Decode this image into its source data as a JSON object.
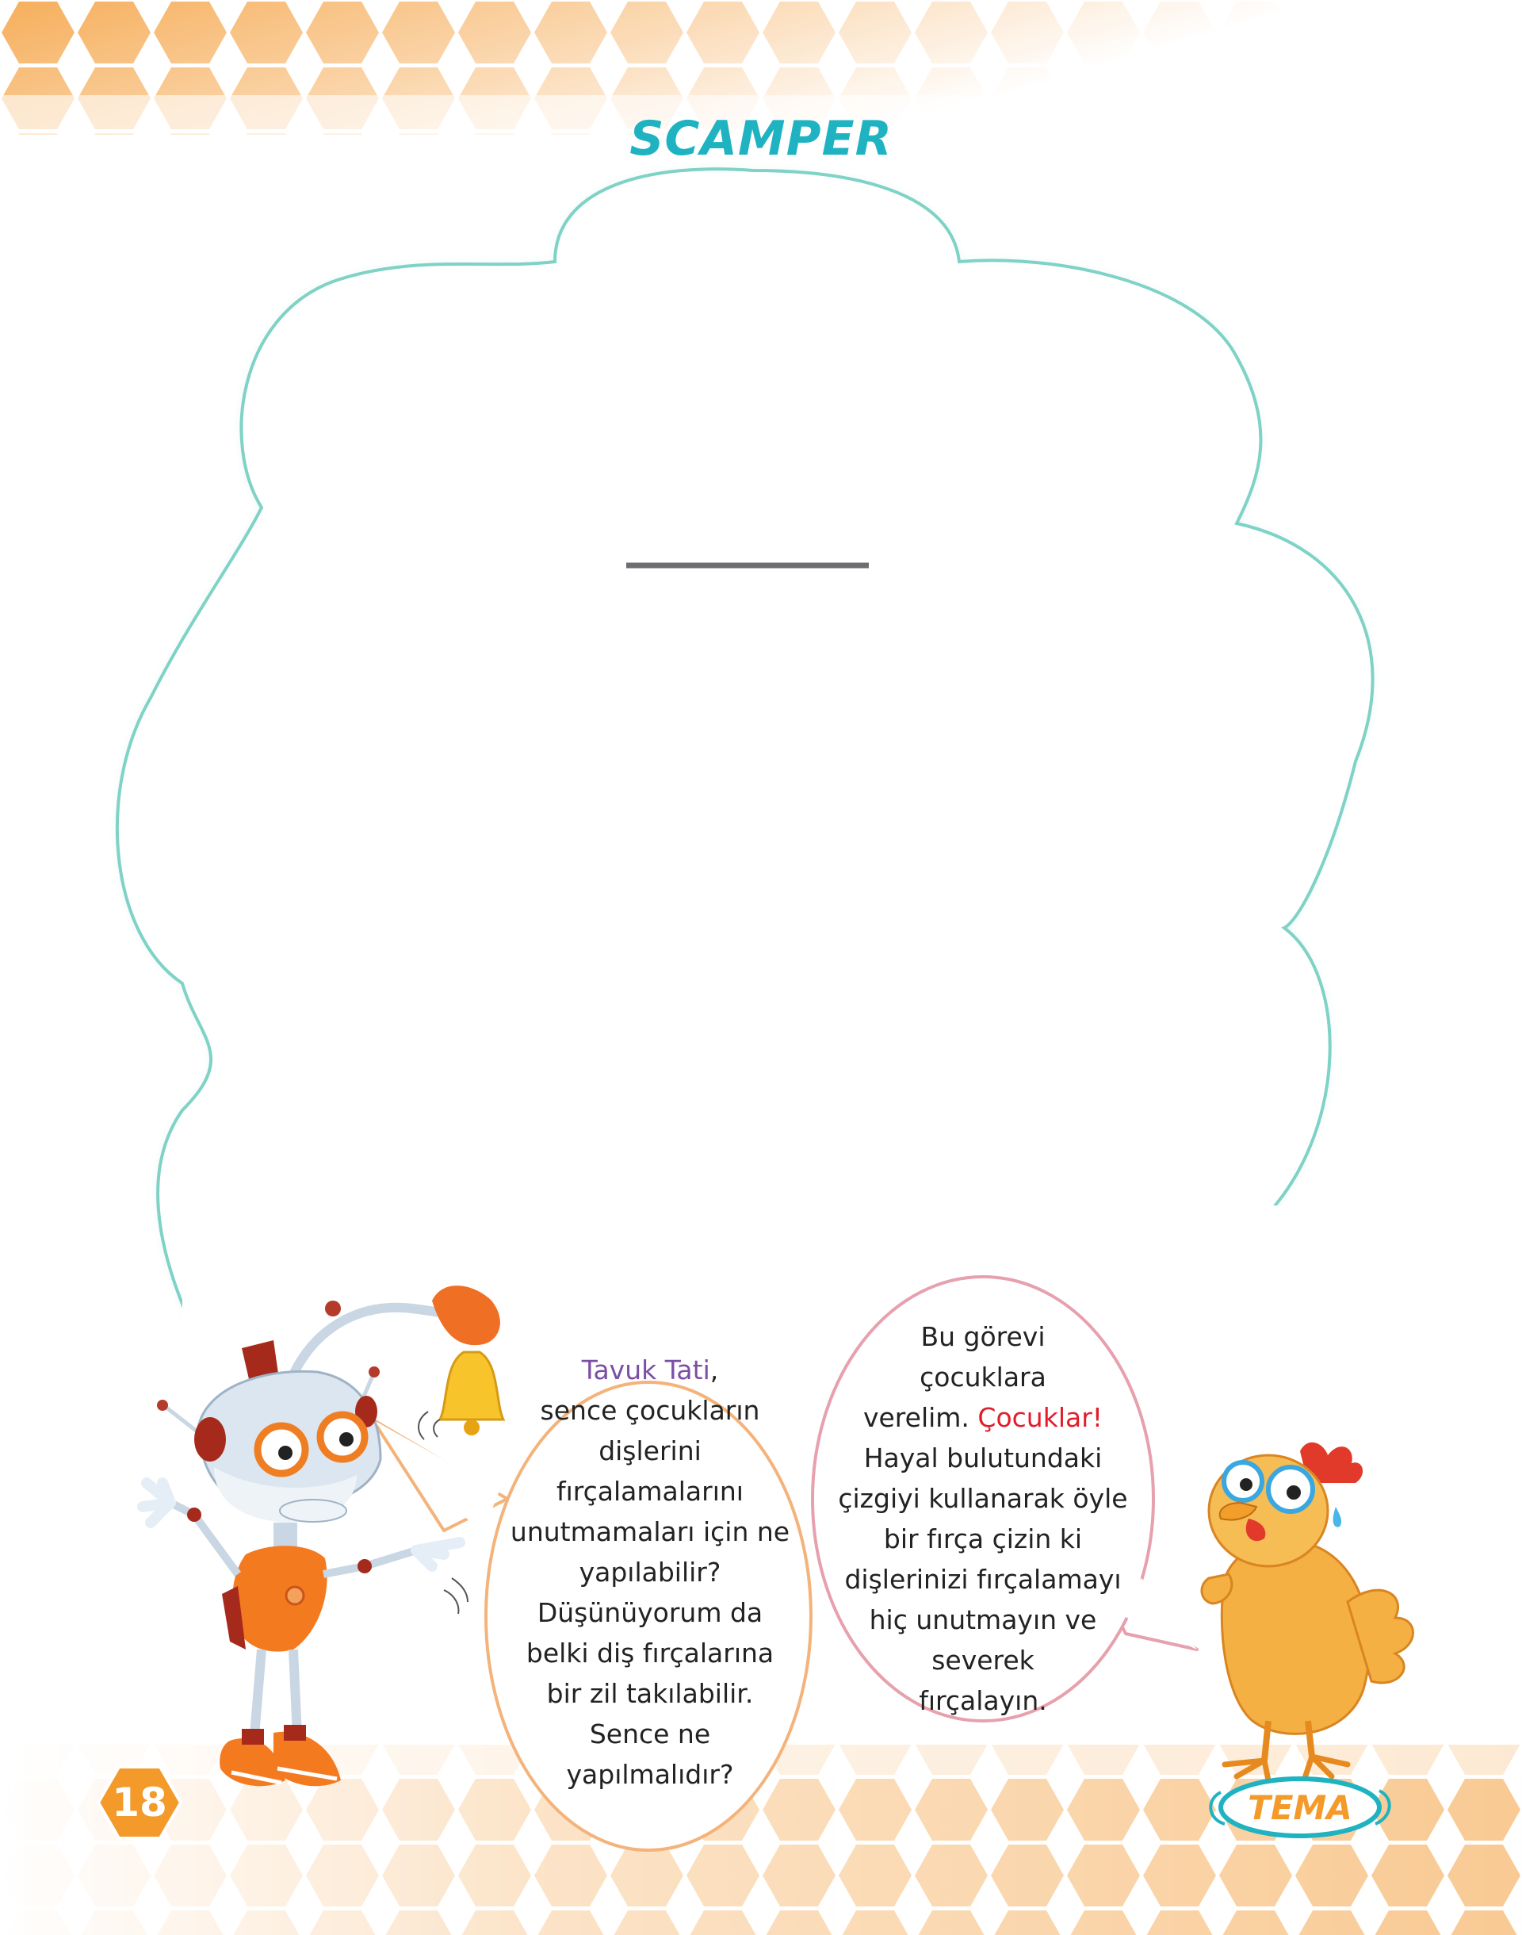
{
  "page": {
    "title": "SCAMPER",
    "page_number": "18",
    "badge": "TEMA"
  },
  "robot_bubble": {
    "lines": [
      [
        "Tavuk Tati",
        ","
      ],
      [
        "sence çocukların"
      ],
      [
        "dişlerini"
      ],
      [
        "fırçalamalarını"
      ],
      [
        "unutmamaları için ne"
      ],
      [
        "yapılabilir?"
      ],
      [
        "Düşünüyorum da"
      ],
      [
        "belki diş fırçalarına"
      ],
      [
        "bir zil takılabilir."
      ],
      [
        "Sence ne"
      ],
      [
        "yapılmalıdır?"
      ]
    ]
  },
  "hen_bubble": {
    "lines": [
      [
        "Bu görevi"
      ],
      [
        "çocuklara"
      ],
      [
        "verelim. ",
        "Çocuklar!"
      ],
      [
        "Hayal bulutundaki"
      ],
      [
        "çizgiyi kullanarak öyle"
      ],
      [
        "bir fırça çizin ki"
      ],
      [
        "dişlerinizi fırçalamayı"
      ],
      [
        "hiç unutmayın ve"
      ],
      [
        "severek"
      ],
      [
        "fırçalayın."
      ]
    ]
  },
  "colors": {
    "title": "#1fb3c2",
    "name_highlight": "#7b4ea5",
    "call_highlight": "#e21c2a",
    "honeycomb": "#f6a64a",
    "cloud_border": "#7fd2c6",
    "robot_bubble_border": "#f3b37a",
    "hen_bubble_border": "#e7a0ad"
  },
  "icons": [
    "honeycomb-pattern",
    "robot-character",
    "hen-character",
    "bell-icon",
    "dream-cloud"
  ]
}
